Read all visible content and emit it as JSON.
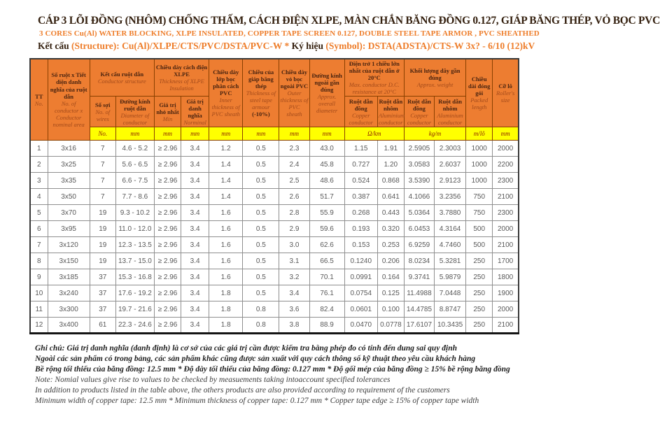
{
  "title": {
    "line1_vi": "CÁP 3 LÕI ĐỒNG (NHÔM) CHỐNG THẤM, CÁCH ĐIỆN XLPE, MÀN CHẮN BĂNG ĐỒNG 0.127, GIÁP BĂNG THÉP, VỎ BỌC PVC",
    "line2_en": "3 CORES Cu(Al) WATER BLOCKING, XLPE INSULATED, COPPER TAPE SCREEN 0.127, DOUBLE STEEL TAPE ARMOR , PVC SHEATHED",
    "line3": {
      "ket_cau": "Kết cấu",
      "structure": "(Structure): Cu(Al)/XLPE/CTS/PVC/DSTA/PVC-W",
      "star": "*",
      "ky_hieu": "Ký hiệu",
      "symbol": "(Symbol): DSTA(ADSTA)/CTS-W 3x? - 6/10 (12)kV"
    }
  },
  "colors": {
    "header_orange": "#ed7d31",
    "units_yellow": "#ffff00",
    "header_text_dark": "#4a2410",
    "header_text_english": "#a34a1a",
    "units_text_red": "#8b2500",
    "title_dark": "#34200f",
    "accent_orange": "#ee7d2a",
    "data_text_gray": "#595959"
  },
  "table": {
    "header": {
      "tt": {
        "vi": "TT",
        "en": "No."
      },
      "size": {
        "vi": "Số ruột x Tiết diện danh nghĩa của ruột dẫn",
        "en": "No. of conductor x Conductor nominal area"
      },
      "conductor_group": {
        "vi": "Kết cấu ruột dẫn",
        "en": "Conductor structure"
      },
      "wires": {
        "vi": "Số sợi",
        "en": "No. of wires"
      },
      "diameter": {
        "vi": "Đường kính ruột dẫn",
        "en": "Diameter of conductor"
      },
      "xlpe_group": {
        "vi": "Chiều dày cách điện XLPE",
        "en": "Thickness of XLPE Insulation"
      },
      "min": {
        "vi": "Giá trị nhỏ nhất",
        "en": "Min"
      },
      "nominal": {
        "vi": "Giá trị danh nghĩa",
        "en": "Norminal"
      },
      "inner_pvc": {
        "vi": "Chiều dày lớp bọc phân cách PVC",
        "en": "Inner thickness of PVC sheath"
      },
      "steel_tape": {
        "vi": "Chiều của giáp băng thép",
        "en": "Thickness of steel tape armour",
        "extra": "(-10%)"
      },
      "outer_pvc": {
        "vi": "Chiều dày vỏ bọc ngoài PVC",
        "en": "Outer thickness of PVC sheath"
      },
      "overall_diameter": {
        "vi": "Đường kính ngoài gần đúng",
        "en": "Approx. overall diameter"
      },
      "resistance_group": {
        "vi": "Điện trở 1 chiều lớn nhất của ruột dẫn ở 20°C",
        "en": "Max. conductor D.C. resistance at 20°C"
      },
      "res_cu": {
        "vi": "Ruột dẫn đồng",
        "en": "Copper conductor"
      },
      "res_al": {
        "vi": "Ruột dẫn nhôm",
        "en": "Aluminium conductor"
      },
      "weight_group": {
        "vi": "Khối lượng dây gần đúng",
        "en": "Approx. weight"
      },
      "weight_cu": {
        "vi": "Ruột dẫn đồng",
        "en": "Copper conductor"
      },
      "weight_al": {
        "vi": "Ruột dẫn nhôm",
        "en": "Aluminium conductor"
      },
      "packed": {
        "vi": "Chiều dài đóng gói",
        "en": "Packed length"
      },
      "roller": {
        "vi": "Cỡ lô",
        "en": "Roller's size"
      }
    },
    "units": [
      {
        "label": "No.",
        "span": 1
      },
      {
        "label": "mm",
        "span": 1
      },
      {
        "label": "mm",
        "span": 1
      },
      {
        "label": "mm",
        "span": 1
      },
      {
        "label": "mm",
        "span": 1
      },
      {
        "label": "mm",
        "span": 1
      },
      {
        "label": "mm",
        "span": 1
      },
      {
        "label": "mm",
        "span": 1
      },
      {
        "label": "Ω/km",
        "span": 2
      },
      {
        "label": "kg/m",
        "span": 2
      },
      {
        "label": "m/lô",
        "span": 1
      },
      {
        "label": "mm",
        "span": 1
      }
    ],
    "rows": [
      [
        "1",
        "3x16",
        "7",
        "4.6 - 5.2",
        "≥ 2.96",
        "3.4",
        "1.2",
        "0.5",
        "2.3",
        "43.0",
        "1.15",
        "1.91",
        "2.5905",
        "2.3003",
        "1000",
        "2000"
      ],
      [
        "2",
        "3x25",
        "7",
        "5.6 - 6.5",
        "≥ 2.96",
        "3.4",
        "1.4",
        "0.5",
        "2.4",
        "45.8",
        "0.727",
        "1.20",
        "3.0583",
        "2.6037",
        "1000",
        "2200"
      ],
      [
        "3",
        "3x35",
        "7",
        "6.6 - 7.5",
        "≥ 2.96",
        "3.4",
        "1.4",
        "0.5",
        "2.5",
        "48.6",
        "0.524",
        "0.868",
        "3.5390",
        "2.9123",
        "1000",
        "2300"
      ],
      [
        "4",
        "3x50",
        "7",
        "7.7 - 8.6",
        "≥ 2.96",
        "3.4",
        "1.4",
        "0.5",
        "2.6",
        "51.7",
        "0.387",
        "0.641",
        "4.1066",
        "3.2356",
        "750",
        "2100"
      ],
      [
        "5",
        "3x70",
        "19",
        "9.3 - 10.2",
        "≥ 2.96",
        "3.4",
        "1.6",
        "0.5",
        "2.8",
        "55.9",
        "0.268",
        "0.443",
        "5.0364",
        "3.7880",
        "750",
        "2300"
      ],
      [
        "6",
        "3x95",
        "19",
        "11.0 - 12.0",
        "≥ 2.96",
        "3.4",
        "1.6",
        "0.5",
        "2.9",
        "59.6",
        "0.193",
        "0.320",
        "6.0453",
        "4.3164",
        "500",
        "2000"
      ],
      [
        "7",
        "3x120",
        "19",
        "12.3 - 13.5",
        "≥ 2.96",
        "3.4",
        "1.6",
        "0.5",
        "3.0",
        "62.6",
        "0.153",
        "0.253",
        "6.9259",
        "4.7460",
        "500",
        "2100"
      ],
      [
        "8",
        "3x150",
        "19",
        "13.7 - 15.0",
        "≥ 2.96",
        "3.4",
        "1.6",
        "0.5",
        "3.1",
        "66.5",
        "0.1240",
        "0.206",
        "8.0234",
        "5.3281",
        "250",
        "1700"
      ],
      [
        "9",
        "3x185",
        "37",
        "15.3 - 16.8",
        "≥ 2.96",
        "3.4",
        "1.6",
        "0.5",
        "3.2",
        "70.1",
        "0.0991",
        "0.164",
        "9.3741",
        "5.9879",
        "250",
        "1800"
      ],
      [
        "10",
        "3x240",
        "37",
        "17.6 - 19.2",
        "≥ 2.96",
        "3.4",
        "1.8",
        "0.5",
        "3.4",
        "76.1",
        "0.0754",
        "0.125",
        "11.4988",
        "7.0448",
        "250",
        "1900"
      ],
      [
        "11",
        "3x300",
        "37",
        "19.7 - 21.6",
        "≥ 2.96",
        "3.4",
        "1.8",
        "0.8",
        "3.6",
        "82.4",
        "0.0601",
        "0.100",
        "14.4785",
        "8.8747",
        "250",
        "2000"
      ],
      [
        "12",
        "3x400",
        "61",
        "22.3 - 24.6",
        "≥ 2.96",
        "3.4",
        "1.8",
        "0.8",
        "3.8",
        "88.9",
        "0.0470",
        "0.0778",
        "17.6107",
        "10.3435",
        "250",
        "2100"
      ]
    ]
  },
  "notes": {
    "vi": [
      "Ghi chú: Giá trị danh nghĩa (danh định) là cơ sở của các giá trị cần được kiểm tra bằng phép đo có tính đến dung sai quy định",
      "Ngoài các sản phẩm có trong bảng, các sản phẩm khác cũng được sản xuất với quy cách thông số kỹ thuật theo yêu cầu khách hàng",
      "Bề rộng tối thiểu của băng đồng: 12.5 mm * Độ dày tối thiểu của băng đồng: 0.127 mm * Độ gối mép của băng đồng ≥ 15% bề rộng băng đồng"
    ],
    "en": [
      "Note: Nomial values give rise to values to be checked by measuements taking intoaccount specified tolerances",
      "In addition to products listed in the table above, the others products are also provided according to requirement of the customers",
      "Minimum width of copper tape: 12.5 mm * Minimum thickness of copper tape: 0.127 mm * Copper tape edge ≥ 15% of copper tape width"
    ]
  }
}
